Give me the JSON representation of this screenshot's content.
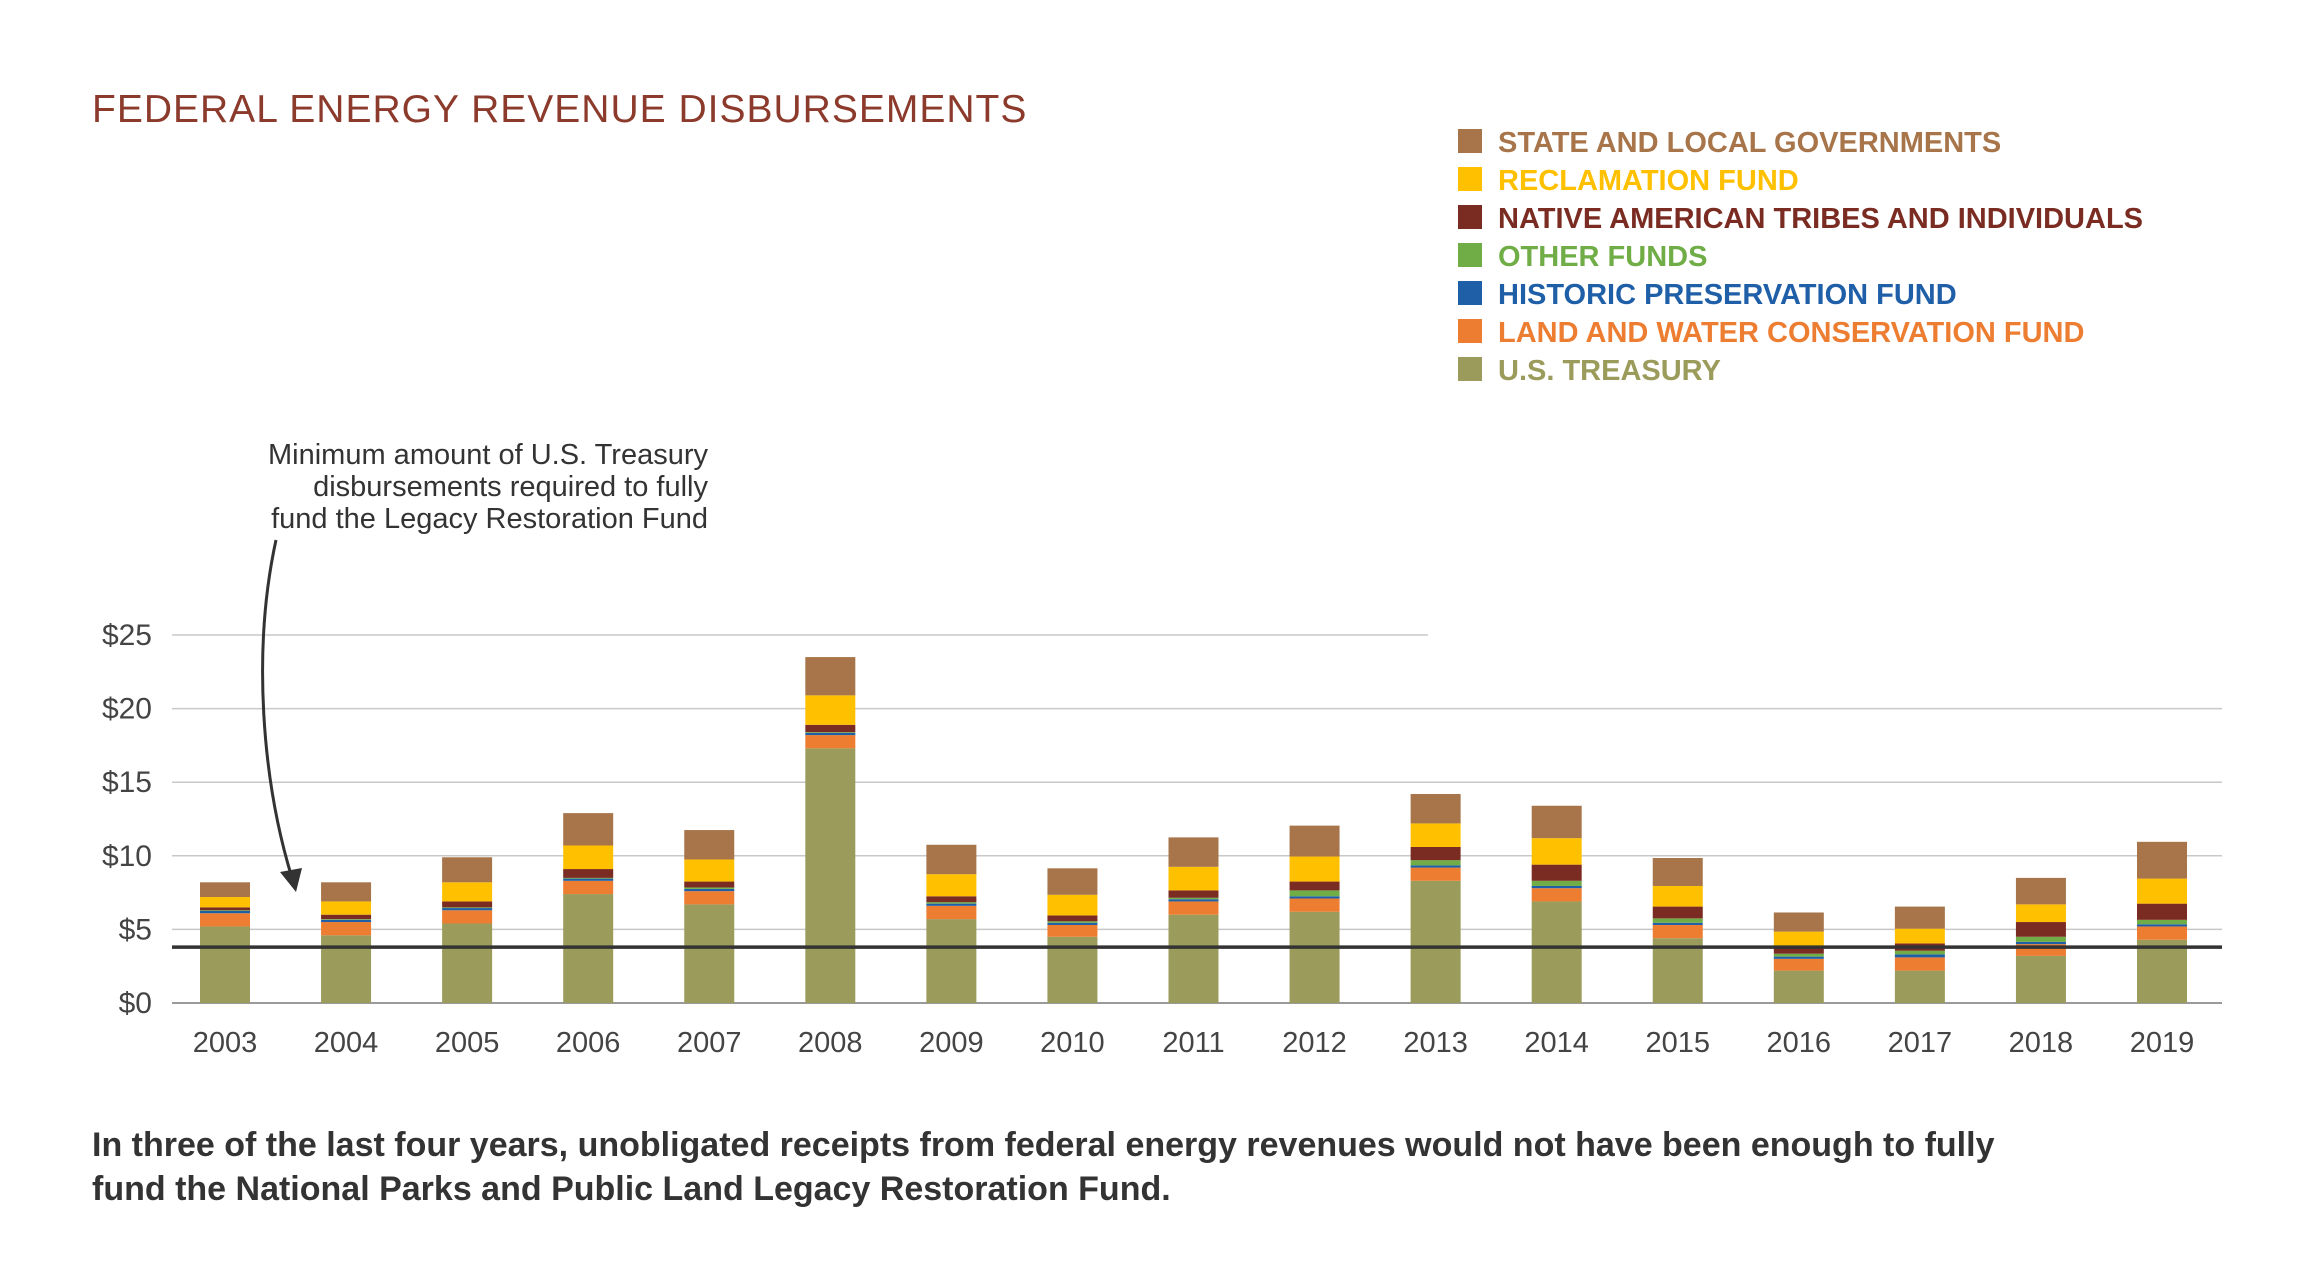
{
  "chart_data": {
    "type": "bar",
    "stacked": true,
    "title": "FEDERAL ENERGY REVENUE DISBURSEMENTS",
    "ylim": [
      0,
      25
    ],
    "y_ticks": [
      "$0",
      "$5",
      "$10",
      "$15",
      "$20",
      "$25"
    ],
    "y_tick_values": [
      0,
      5,
      10,
      15,
      20,
      25
    ],
    "categories": [
      "2003",
      "2004",
      "2005",
      "2006",
      "2007",
      "2008",
      "2009",
      "2010",
      "2011",
      "2012",
      "2013",
      "2014",
      "2015",
      "2016",
      "2017",
      "2018",
      "2019"
    ],
    "series": [
      {
        "name": "U.S. TREASURY",
        "color": "#9b9b5c",
        "values": [
          5.2,
          4.6,
          5.4,
          7.4,
          6.7,
          17.3,
          5.7,
          4.5,
          6.0,
          6.2,
          8.3,
          6.9,
          4.4,
          2.2,
          2.2,
          3.2,
          4.3
        ]
      },
      {
        "name": "LAND AND WATER CONSERVATION FUND",
        "color": "#ed7d31",
        "values": [
          0.9,
          0.9,
          0.9,
          0.9,
          0.9,
          0.9,
          0.9,
          0.8,
          0.9,
          0.9,
          0.9,
          0.9,
          0.9,
          0.8,
          0.9,
          0.8,
          0.9
        ]
      },
      {
        "name": "HISTORIC PRESERVATION FUND",
        "color": "#1f5fa8",
        "values": [
          0.15,
          0.15,
          0.15,
          0.15,
          0.15,
          0.15,
          0.15,
          0.15,
          0.15,
          0.15,
          0.15,
          0.15,
          0.15,
          0.15,
          0.2,
          0.15,
          0.15
        ]
      },
      {
        "name": "OTHER FUNDS",
        "color": "#70ad47",
        "values": [
          0.05,
          0.05,
          0.05,
          0.05,
          0.1,
          0.05,
          0.1,
          0.1,
          0.1,
          0.4,
          0.35,
          0.35,
          0.3,
          0.2,
          0.25,
          0.35,
          0.3
        ]
      },
      {
        "name": "NATIVE AMERICAN TRIBES AND INDIVIDUALS",
        "color": "#7b2c22",
        "values": [
          0.2,
          0.3,
          0.4,
          0.6,
          0.4,
          0.5,
          0.4,
          0.4,
          0.5,
          0.6,
          0.9,
          1.1,
          0.8,
          0.5,
          0.5,
          1.0,
          1.1
        ]
      },
      {
        "name": "RECLAMATION FUND",
        "color": "#ffc000",
        "values": [
          0.7,
          0.9,
          1.3,
          1.6,
          1.5,
          2.0,
          1.5,
          1.4,
          1.6,
          1.7,
          1.6,
          1.8,
          1.4,
          1.0,
          1.0,
          1.2,
          1.7
        ]
      },
      {
        "name": "STATE AND LOCAL GOVERNMENTS",
        "color": "#a8754a",
        "values": [
          1.0,
          1.3,
          1.7,
          2.2,
          2.0,
          2.6,
          2.0,
          1.8,
          2.0,
          2.1,
          2.0,
          2.2,
          1.9,
          1.3,
          1.5,
          1.8,
          2.5
        ]
      }
    ],
    "legend_order": [
      6,
      5,
      4,
      3,
      2,
      1,
      0
    ],
    "legend_placement": "top-right",
    "reference_line": {
      "value": 3.8,
      "color": "#333333"
    },
    "annotation": {
      "lines": [
        "Minimum amount of U.S. Treasury",
        "disbursements required to fully",
        "fund the Legacy Restoration Fund"
      ]
    },
    "caption": {
      "lines": [
        "In three of the last four years, unobligated receipts from federal energy revenues would not have been enough to fully",
        "fund the National Parks and Public Land Legacy Restoration Fund."
      ]
    },
    "title_color": "#8b3a2b",
    "grid": true
  }
}
